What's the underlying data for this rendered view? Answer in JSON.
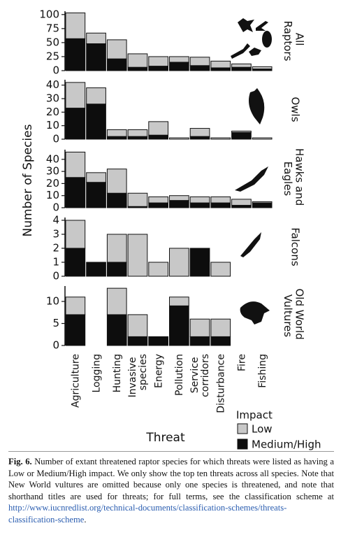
{
  "chart_data": {
    "type": "stacked_bar",
    "y_label": "Number of Species",
    "x_label": "Threat",
    "legend_title": "Impact",
    "categories": [
      "Agriculture",
      "Logging",
      "Hunting",
      "Invasive species",
      "Energy",
      "Pollution",
      "Service corridors",
      "Disturbance",
      "Fire",
      "Fishing"
    ],
    "series": [
      {
        "name": "Low",
        "color": "#c8c8c8"
      },
      {
        "name": "Medium/High",
        "color": "#0d0d0d"
      }
    ],
    "panels": [
      {
        "title": "All Raptors",
        "ylim": [
          0,
          106
        ],
        "yticks": [
          0,
          25,
          50,
          75,
          100
        ],
        "values": [
          [
            46,
            19,
            34,
            24,
            17,
            10,
            15,
            12,
            6,
            4
          ],
          [
            57,
            48,
            21,
            6,
            8,
            15,
            9,
            5,
            6,
            3
          ]
        ]
      },
      {
        "title": "Owls",
        "ylim": [
          0,
          44
        ],
        "yticks": [
          0,
          10,
          20,
          30,
          40
        ],
        "values": [
          [
            19,
            12,
            5,
            5,
            10,
            1,
            6,
            1,
            1,
            1
          ],
          [
            23,
            26,
            2,
            2,
            3,
            0,
            2,
            0,
            5,
            0
          ]
        ]
      },
      {
        "title": "Hawks and Eagles",
        "ylim": [
          0,
          48
        ],
        "yticks": [
          0,
          10,
          20,
          30,
          40
        ],
        "values": [
          [
            21,
            8,
            20,
            11,
            5,
            4,
            5,
            5,
            5,
            1
          ],
          [
            25,
            21,
            12,
            1,
            4,
            6,
            4,
            4,
            2,
            4
          ]
        ]
      },
      {
        "title": "Falcons",
        "ylim": [
          0,
          4.2
        ],
        "yticks": [
          0,
          1,
          2,
          3,
          4
        ],
        "values": [
          [
            2,
            0,
            2,
            3,
            1,
            2,
            0,
            1,
            0,
            0
          ],
          [
            2,
            1,
            1,
            0,
            0,
            0,
            2,
            0,
            0,
            0
          ]
        ]
      },
      {
        "title": "Old World Vultures",
        "ylim": [
          0,
          13.5
        ],
        "yticks": [
          0,
          5,
          10
        ],
        "values": [
          [
            4,
            0,
            6,
            5,
            0,
            2,
            4,
            4,
            0,
            0
          ],
          [
            7,
            0,
            7,
            2,
            2,
            9,
            2,
            2,
            0,
            0
          ]
        ]
      }
    ]
  },
  "caption": {
    "label": "Fig. 6.",
    "text": "Number of extant threatened raptor species for which threats were listed as having a Low or Medium/High impact. We only show the top ten threats across all species. Note that New World vultures are omitted because only one species is threatened, and note that shorthand titles are used for threats; for full terms, see the classification scheme at",
    "url": "http://www.iucnredlist.org/technical-documents/classification-schemes/threats-classification-scheme",
    "end": "."
  }
}
